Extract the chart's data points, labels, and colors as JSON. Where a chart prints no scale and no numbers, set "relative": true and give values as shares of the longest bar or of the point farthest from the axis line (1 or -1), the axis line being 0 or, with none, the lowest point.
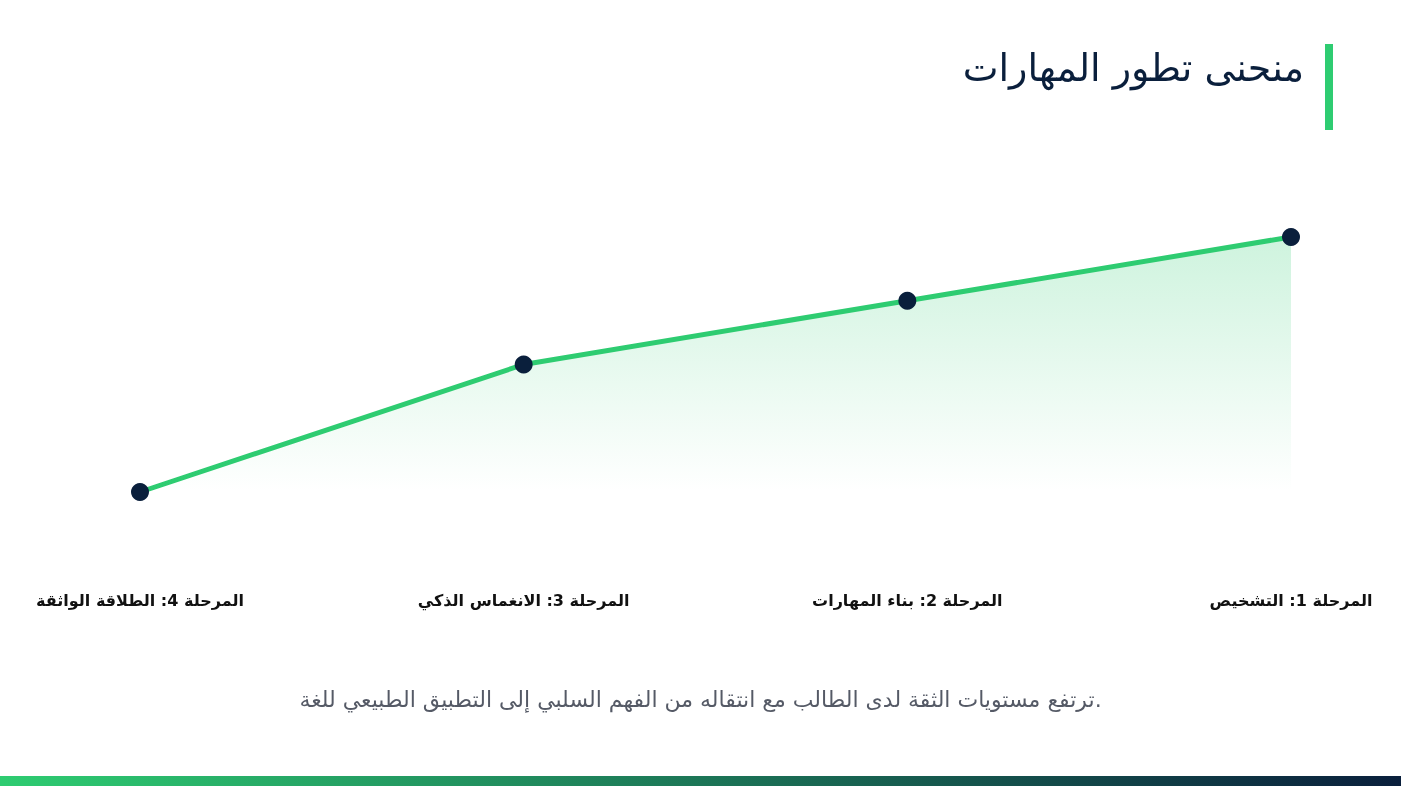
{
  "chart_data": {
    "type": "area",
    "title": "منحنى تطور المهارات",
    "categories": [
      "المرحلة 4: الطلاقة الواثقة",
      "المرحلة 3: الانغماس الذكي",
      "المرحلة 2: بناء المهارات",
      "المرحلة 1: التشخيص"
    ],
    "values": [
      0,
      0.5,
      0.75,
      1
    ],
    "color": "#2ecc71",
    "relative": true,
    "marker": "circle",
    "line_style": "solid",
    "annotations": [
      "ترتفع مستويات الثقة لدى الطالب مع انتقاله من الفهم السلبي إلى التطبيق الطبيعي للغة."
    ]
  }
}
